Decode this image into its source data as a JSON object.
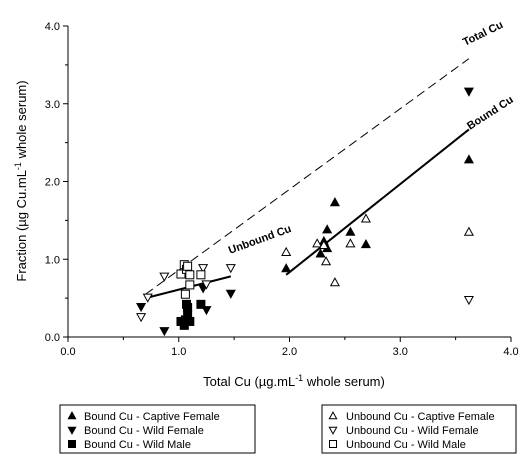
{
  "chart_data": {
    "type": "scatter",
    "title": "",
    "xlabel": "Total Cu (µg.mL⁻¹ whole serum)",
    "ylabel": "Fraction (µg Cu.mL⁻¹ whole serum)",
    "xlim": [
      0.0,
      4.0
    ],
    "ylim": [
      0.0,
      4.0
    ],
    "x_ticks": [
      "0.0",
      "1.0",
      "2.0",
      "3.0",
      "4.0"
    ],
    "y_ticks": [
      "0.0",
      "1.0",
      "2.0",
      "3.0",
      "4.0"
    ],
    "grid": false,
    "legend_position": "bottom",
    "series": [
      {
        "name": "Bound Cu - Captive Female",
        "marker": "triangle-up",
        "filled": true,
        "points": [
          [
            1.97,
            0.88
          ],
          [
            2.28,
            1.07
          ],
          [
            2.31,
            1.23
          ],
          [
            2.34,
            1.14
          ],
          [
            2.34,
            1.38
          ],
          [
            2.41,
            1.73
          ],
          [
            2.55,
            1.35
          ],
          [
            2.69,
            1.19
          ],
          [
            3.62,
            2.28
          ]
        ]
      },
      {
        "name": "Bound Cu - Wild Female",
        "marker": "triangle-down",
        "filled": true,
        "points": [
          [
            0.66,
            0.39
          ],
          [
            0.87,
            0.08
          ],
          [
            1.22,
            0.63
          ],
          [
            1.25,
            0.35
          ],
          [
            1.47,
            0.56
          ],
          [
            3.62,
            3.16
          ]
        ]
      },
      {
        "name": "Bound Cu - Wild Male",
        "marker": "square",
        "filled": true,
        "points": [
          [
            1.02,
            0.2
          ],
          [
            1.05,
            0.15
          ],
          [
            1.06,
            0.22
          ],
          [
            1.07,
            0.42
          ],
          [
            1.08,
            0.3
          ],
          [
            1.1,
            0.2
          ],
          [
            1.2,
            0.42
          ],
          [
            1.08,
            0.38
          ]
        ]
      },
      {
        "name": "Unbound Cu - Captive Female",
        "marker": "triangle-up",
        "filled": false,
        "points": [
          [
            1.97,
            1.09
          ],
          [
            2.25,
            1.2
          ],
          [
            2.31,
            1.18
          ],
          [
            2.33,
            0.97
          ],
          [
            2.41,
            0.7
          ],
          [
            2.55,
            1.2
          ],
          [
            2.69,
            1.52
          ],
          [
            3.62,
            1.35
          ]
        ]
      },
      {
        "name": "Unbound Cu - Wild Female",
        "marker": "triangle-down",
        "filled": false,
        "points": [
          [
            0.66,
            0.26
          ],
          [
            0.72,
            0.51
          ],
          [
            0.87,
            0.78
          ],
          [
            1.22,
            0.89
          ],
          [
            1.25,
            0.68
          ],
          [
            1.47,
            0.89
          ],
          [
            3.62,
            0.48
          ]
        ]
      },
      {
        "name": "Unbound Cu - Wild Male",
        "marker": "square",
        "filled": false,
        "points": [
          [
            1.02,
            0.81
          ],
          [
            1.05,
            0.93
          ],
          [
            1.06,
            0.55
          ],
          [
            1.07,
            0.87
          ],
          [
            1.08,
            0.91
          ],
          [
            1.1,
            0.8
          ],
          [
            1.2,
            0.8
          ],
          [
            1.1,
            0.67
          ]
        ]
      }
    ],
    "lines": [
      {
        "label": "Total Cu",
        "style": "dashed",
        "from": [
          0.7,
          0.55
        ],
        "to": [
          3.62,
          3.58
        ]
      },
      {
        "label": "Unbound Cu",
        "style": "solid",
        "from": [
          0.7,
          0.5
        ],
        "to": [
          1.47,
          0.78
        ]
      },
      {
        "label": "Bound Cu",
        "style": "solid",
        "from": [
          1.97,
          0.8
        ],
        "to": [
          3.62,
          2.67
        ]
      }
    ]
  }
}
